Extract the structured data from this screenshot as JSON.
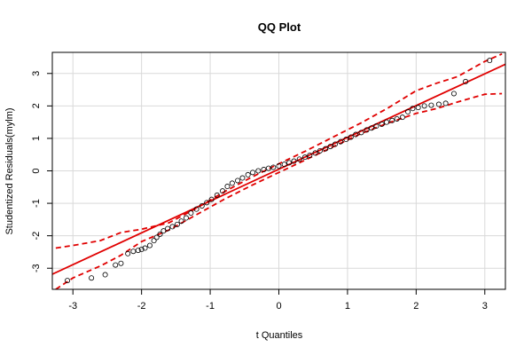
{
  "chart_data": {
    "type": "scatter",
    "title": "QQ Plot",
    "xlabel": "t Quantiles",
    "ylabel": "Studentized Residuals(mylm)",
    "xlim": [
      -3.3,
      3.3
    ],
    "ylim": [
      -3.65,
      3.65
    ],
    "xticks": [
      -3,
      -2,
      -1,
      0,
      1,
      2,
      3
    ],
    "yticks": [
      -3,
      -2,
      -1,
      0,
      1,
      2,
      3
    ],
    "grid": true,
    "colors": {
      "points": "#000000",
      "reference": "#e00000",
      "grid": "#d9d9d9"
    },
    "reference_line": {
      "intercept": 0.05,
      "slope": 0.98
    },
    "confidence_band": {
      "x": [
        -3.25,
        -3.0,
        -2.6,
        -2.3,
        -2.0,
        -1.6,
        -1.2,
        -0.8,
        -0.4,
        0.0,
        0.4,
        0.8,
        1.2,
        1.6,
        2.0,
        2.3,
        2.6,
        3.0,
        3.25
      ],
      "upper": [
        -2.38,
        -2.3,
        -2.15,
        -1.9,
        -1.8,
        -1.6,
        -1.15,
        -0.65,
        -0.2,
        0.22,
        0.62,
        1.05,
        1.48,
        1.95,
        2.47,
        2.7,
        2.9,
        3.37,
        3.6
      ],
      "lower": [
        -3.65,
        -3.3,
        -2.93,
        -2.6,
        -2.18,
        -1.82,
        -1.35,
        -0.88,
        -0.45,
        -0.05,
        0.35,
        0.75,
        1.15,
        1.48,
        1.77,
        1.92,
        2.12,
        2.36,
        2.38
      ]
    },
    "points": {
      "x": [
        -3.08,
        -2.73,
        -2.53,
        -2.38,
        -2.3,
        -2.2,
        -2.12,
        -2.05,
        -2.0,
        -1.95,
        -1.88,
        -1.82,
        -1.78,
        -1.73,
        -1.68,
        -1.62,
        -1.55,
        -1.48,
        -1.42,
        -1.35,
        -1.28,
        -1.2,
        -1.12,
        -1.05,
        -0.98,
        -0.9,
        -0.82,
        -0.75,
        -0.68,
        -0.6,
        -0.53,
        -0.45,
        -0.38,
        -0.3,
        -0.22,
        -0.15,
        -0.08,
        0.0,
        0.08,
        0.15,
        0.22,
        0.3,
        0.38,
        0.45,
        0.53,
        0.6,
        0.68,
        0.75,
        0.82,
        0.9,
        0.98,
        1.05,
        1.12,
        1.2,
        1.28,
        1.35,
        1.42,
        1.5,
        1.57,
        1.65,
        1.72,
        1.8,
        1.88,
        1.95,
        2.03,
        2.12,
        2.22,
        2.33,
        2.43,
        2.55,
        2.72,
        3.07
      ],
      "y": [
        -3.38,
        -3.3,
        -3.2,
        -2.9,
        -2.85,
        -2.55,
        -2.48,
        -2.45,
        -2.42,
        -2.38,
        -2.3,
        -2.15,
        -2.05,
        -1.95,
        -1.85,
        -1.78,
        -1.72,
        -1.65,
        -1.55,
        -1.45,
        -1.3,
        -1.18,
        -1.08,
        -0.98,
        -0.88,
        -0.75,
        -0.62,
        -0.48,
        -0.38,
        -0.3,
        -0.22,
        -0.12,
        -0.05,
        0.0,
        0.04,
        0.08,
        0.11,
        0.15,
        0.2,
        0.25,
        0.3,
        0.36,
        0.42,
        0.48,
        0.55,
        0.62,
        0.68,
        0.75,
        0.82,
        0.9,
        0.97,
        1.04,
        1.12,
        1.18,
        1.26,
        1.32,
        1.38,
        1.44,
        1.5,
        1.55,
        1.6,
        1.65,
        1.82,
        1.92,
        1.95,
        2.0,
        2.02,
        2.05,
        2.08,
        2.38,
        2.75,
        3.4
      ]
    }
  }
}
